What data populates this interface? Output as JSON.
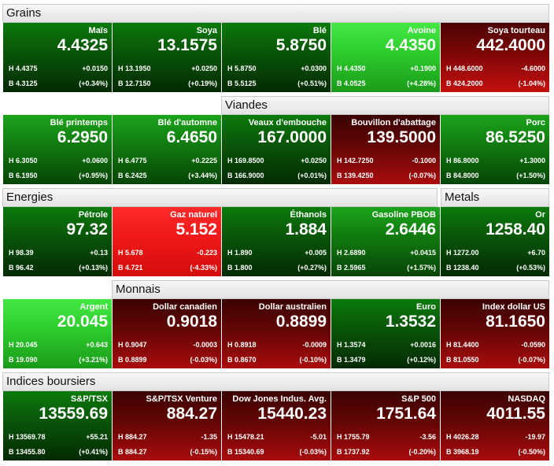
{
  "sections": {
    "grains": "Grains",
    "viandes": "Viandes",
    "energies": "Energies",
    "metals": "Metals",
    "monnais": "Monnais",
    "indices": "Indices boursiers"
  },
  "tiles": {
    "mais": {
      "name": "Maïs",
      "price": "4.4325",
      "high": "H 4.4375",
      "low": "B 4.3125",
      "change": "+0.0150",
      "pct": "(+0.34%)"
    },
    "soya": {
      "name": "Soya",
      "price": "13.1575",
      "high": "H 13.1950",
      "low": "B 12.7150",
      "change": "+0.0250",
      "pct": "(+0.19%)"
    },
    "ble": {
      "name": "Blé",
      "price": "5.8750",
      "high": "H 5.8750",
      "low": "B 5.5125",
      "change": "+0.0300",
      "pct": "(+0.51%)"
    },
    "avoine": {
      "name": "Avoine",
      "price": "4.4350",
      "high": "H 4.4350",
      "low": "B 4.0525",
      "change": "+0.1900",
      "pct": "(+4.28%)"
    },
    "soyatourteau": {
      "name": "Soya tourteau",
      "price": "442.4000",
      "high": "H 448.6000",
      "low": "B 424.2000",
      "change": "-4.6000",
      "pct": "(-1.04%)"
    },
    "bleprintemps": {
      "name": "Blé printemps",
      "price": "6.2950",
      "high": "H 6.3050",
      "low": "B 6.1950",
      "change": "+0.0600",
      "pct": "(+0.95%)"
    },
    "bleautomne": {
      "name": "Blé d'automne",
      "price": "6.4650",
      "high": "H 6.4775",
      "low": "B 6.2425",
      "change": "+0.2225",
      "pct": "(+3.44%)"
    },
    "veaux": {
      "name": "Veaux d'embouche",
      "price": "167.0000",
      "high": "H 169.8500",
      "low": "B 166.9000",
      "change": "+0.0250",
      "pct": "(+0.01%)"
    },
    "bouvillon": {
      "name": "Bouvillon d'abattage",
      "price": "139.5000",
      "high": "H 142.7250",
      "low": "B 139.4250",
      "change": "-0.1000",
      "pct": "(-0.07%)"
    },
    "porc": {
      "name": "Porc",
      "price": "86.5250",
      "high": "H 86.8000",
      "low": "B 84.8000",
      "change": "+1.3000",
      "pct": "(+1.50%)"
    },
    "petrole": {
      "name": "Pétrole",
      "price": "97.32",
      "high": "H 98.39",
      "low": "B 96.42",
      "change": "+0.13",
      "pct": "(+0.13%)"
    },
    "gaz": {
      "name": "Gaz naturel",
      "price": "5.152",
      "high": "H 5.678",
      "low": "B 4.721",
      "change": "-0.223",
      "pct": "(-4.33%)"
    },
    "ethanols": {
      "name": "Éthanols",
      "price": "1.884",
      "high": "H 1.890",
      "low": "B 1.800",
      "change": "+0.005",
      "pct": "(+0.27%)"
    },
    "gasoline": {
      "name": "Gasoline PBOB",
      "price": "2.6446",
      "high": "H 2.6890",
      "low": "B 2.5965",
      "change": "+0.0415",
      "pct": "(+1.57%)"
    },
    "or": {
      "name": "Or",
      "price": "1258.40",
      "high": "H 1272.00",
      "low": "B 1238.40",
      "change": "+6.70",
      "pct": "(+0.53%)"
    },
    "argent": {
      "name": "Argent",
      "price": "20.045",
      "high": "H 20.045",
      "low": "B 19.090",
      "change": "+0.643",
      "pct": "(+3.21%)"
    },
    "cad": {
      "name": "Dollar canadien",
      "price": "0.9018",
      "high": "H 0.9047",
      "low": "B 0.8899",
      "change": "-0.0003",
      "pct": "(-0.03%)"
    },
    "aud": {
      "name": "Dollar australien",
      "price": "0.8899",
      "high": "H 0.8918",
      "low": "B 0.8670",
      "change": "-0.0009",
      "pct": "(-0.10%)"
    },
    "euro": {
      "name": "Euro",
      "price": "1.3532",
      "high": "H 1.3574",
      "low": "B 1.3479",
      "change": "+0.0016",
      "pct": "(+0.12%)"
    },
    "dxy": {
      "name": "Index dollar US",
      "price": "81.1650",
      "high": "H 81.4400",
      "low": "B 81.0550",
      "change": "-0.0590",
      "pct": "(-0.07%)"
    },
    "tsx": {
      "name": "S&P/TSX",
      "price": "13559.69",
      "high": "H 13569.78",
      "low": "B 13455.80",
      "change": "+55.21",
      "pct": "(+0.41%)"
    },
    "tsxv": {
      "name": "S&P/TSX Venture",
      "price": "884.27",
      "high": "H 884.27",
      "low": "B 884.27",
      "change": "-1.35",
      "pct": "(-0.15%)"
    },
    "dow": {
      "name": "Dow Jones Indus. Avg.",
      "price": "15440.23",
      "high": "H 15478.21",
      "low": "B 15340.69",
      "change": "-5.01",
      "pct": "(-0.03%)"
    },
    "sp500": {
      "name": "S&P 500",
      "price": "1751.64",
      "high": "H 1755.79",
      "low": "B 1737.92",
      "change": "-3.56",
      "pct": "(-0.20%)"
    },
    "nasdaq": {
      "name": "NASDAQ",
      "price": "4011.55",
      "high": "H 4026.28",
      "low": "B 3968.19",
      "change": "-19.97",
      "pct": "(-0.50%)"
    }
  }
}
